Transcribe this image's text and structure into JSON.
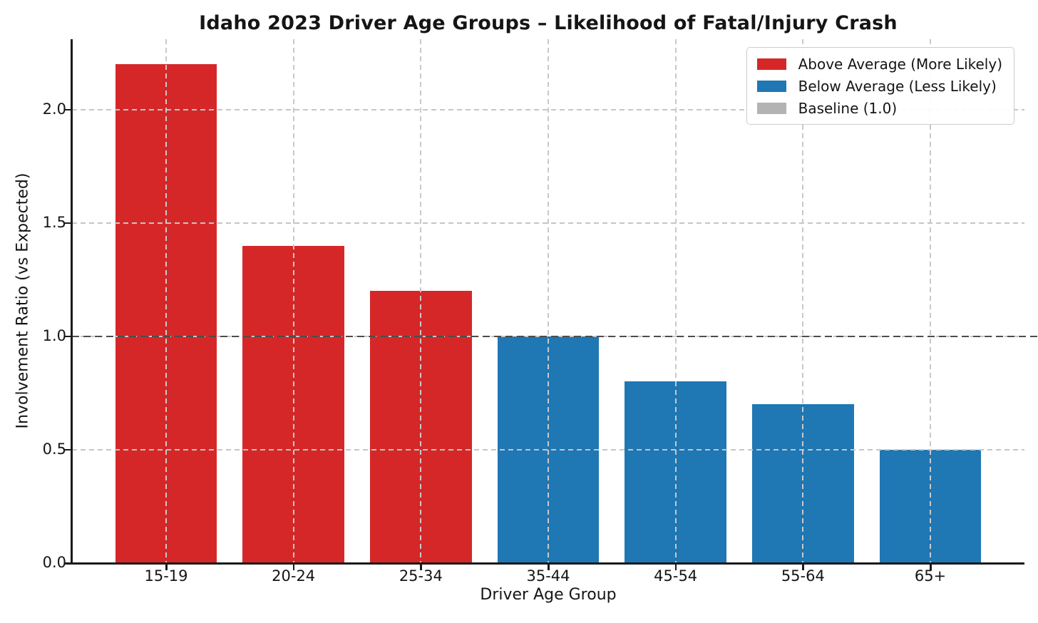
{
  "chart_data": {
    "type": "bar",
    "title": "Idaho 2023 Driver Age Groups – Likelihood of Fatal/Injury Crash",
    "xlabel": "Driver Age Group",
    "ylabel": "Involvement Ratio (vs Expected)",
    "categories": [
      "15-19",
      "20-24",
      "25-34",
      "35-44",
      "45-54",
      "55-64",
      "65+"
    ],
    "values": [
      2.2,
      1.4,
      1.2,
      1.0,
      0.8,
      0.7,
      0.5
    ],
    "bar_groups": [
      "above",
      "above",
      "above",
      "below",
      "below",
      "below",
      "below"
    ],
    "group_colors": {
      "above": "#d62728",
      "below": "#1f77b4"
    },
    "baseline_value": 1.0,
    "baseline_color": "#4d4d4d",
    "grid": true,
    "grid_color": "#c9c9c9",
    "ylim": [
      0,
      2.31
    ],
    "yticks": [
      0.0,
      0.5,
      1.0,
      1.5,
      2.0
    ],
    "ytick_labels": [
      "0.0",
      "0.5",
      "1.0",
      "1.5",
      "2.0"
    ],
    "legend": {
      "position": "upper right",
      "entries": [
        {
          "label": "Above Average (More Likely)",
          "color": "#d62728"
        },
        {
          "label": "Below Average (Less Likely)",
          "color": "#1f77b4"
        },
        {
          "label": "Baseline (1.0)",
          "color": "#b3b3b3"
        }
      ]
    }
  }
}
